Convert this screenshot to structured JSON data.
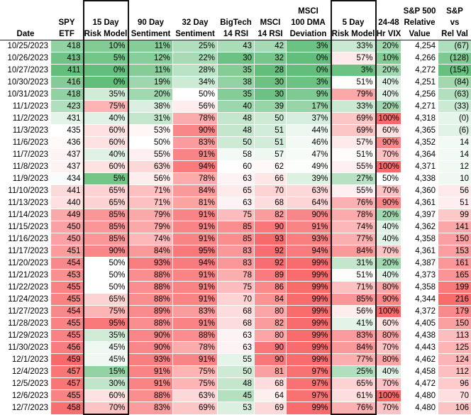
{
  "headers": {
    "date": [
      "Date"
    ],
    "spy": [
      "SPY",
      "ETF"
    ],
    "risk15": [
      "15 Day",
      "Risk Model"
    ],
    "sent90": [
      "90 Day",
      "Sentiment"
    ],
    "sent32": [
      "32 Day",
      "Sentiment"
    ],
    "bigtech": [
      "BigTech",
      "14 RSI"
    ],
    "msci_rsi": [
      "MSCI",
      "14 RSI"
    ],
    "dma": [
      "MSCI",
      "100 DMA",
      "Deviation"
    ],
    "risk5": [
      "5 Day",
      "Risk Model"
    ],
    "vix": [
      "24-48",
      "Hr VIX"
    ],
    "sp500": [
      "S&P 500",
      "Relative",
      "Value"
    ],
    "relval": [
      "S&P",
      "vs",
      "Rel Val"
    ]
  },
  "rows": [
    {
      "date": "10/25/2023",
      "spy": "418",
      "risk15": "10%",
      "sent90": "11%",
      "sent32": "25%",
      "bigtech": "43",
      "msci_rsi": "42",
      "dma": "3%",
      "risk5": "33%",
      "vix": "20%",
      "sp500": "4,254",
      "relval": "(67)"
    },
    {
      "date": "10/26/2023",
      "spy": "413",
      "risk15": "5%",
      "sent90": "12%",
      "sent32": "22%",
      "bigtech": "30",
      "msci_rsi": "32",
      "dma": "0%",
      "risk5": "57%",
      "vix": "10%",
      "sp500": "4,266",
      "relval": "(128)"
    },
    {
      "date": "10/27/2023",
      "spy": "411",
      "risk15": "0%",
      "sent90": "11%",
      "sent32": "28%",
      "bigtech": "35",
      "msci_rsi": "28",
      "dma": "0%",
      "risk5": "3%",
      "vix": "20%",
      "sp500": "4,272",
      "relval": "(154)"
    },
    {
      "date": "10/30/2023",
      "spy": "416",
      "risk15": "0%",
      "sent90": "19%",
      "sent32": "34%",
      "bigtech": "38",
      "msci_rsi": "30",
      "dma": "3%",
      "risk5": "51%",
      "vix": "40%",
      "sp500": "4,251",
      "relval": "(84)"
    },
    {
      "date": "10/31/2023",
      "spy": "418",
      "risk15": "35%",
      "sent90": "20%",
      "sent32": "50%",
      "bigtech": "35",
      "msci_rsi": "30",
      "dma": "9%",
      "risk5": "79%",
      "vix": "40%",
      "sp500": "4,256",
      "relval": "(63)"
    },
    {
      "date": "11/1/2023",
      "spy": "423",
      "risk15": "75%",
      "sent90": "38%",
      "sent32": "56%",
      "bigtech": "40",
      "msci_rsi": "39",
      "dma": "17%",
      "risk5": "33%",
      "vix": "20%",
      "sp500": "4,271",
      "relval": "(33)"
    },
    {
      "date": "11/2/2023",
      "spy": "431",
      "risk15": "40%",
      "sent90": "31%",
      "sent32": "78%",
      "bigtech": "48",
      "msci_rsi": "50",
      "dma": "37%",
      "risk5": "69%",
      "vix": "100%",
      "sp500": "4,318",
      "relval": "(0)"
    },
    {
      "date": "11/3/2023",
      "spy": "435",
      "risk15": "60%",
      "sent90": "53%",
      "sent32": "90%",
      "bigtech": "48",
      "msci_rsi": "51",
      "dma": "44%",
      "risk5": "69%",
      "vix": "60%",
      "sp500": "4,365",
      "relval": "(6)"
    },
    {
      "date": "11/6/2023",
      "spy": "436",
      "risk15": "60%",
      "sent90": "50%",
      "sent32": "83%",
      "bigtech": "50",
      "msci_rsi": "51",
      "dma": "46%",
      "risk5": "57%",
      "vix": "90%",
      "sp500": "4,352",
      "relval": "14"
    },
    {
      "date": "11/7/2023",
      "spy": "437",
      "risk15": "40%",
      "sent90": "55%",
      "sent32": "91%",
      "bigtech": "58",
      "msci_rsi": "57",
      "dma": "47%",
      "risk5": "51%",
      "vix": "70%",
      "sp500": "4,364",
      "relval": "14"
    },
    {
      "date": "11/8/2023",
      "spy": "437",
      "risk15": "60%",
      "sent90": "63%",
      "sent32": "94%",
      "bigtech": "60",
      "msci_rsi": "62",
      "dma": "49%",
      "risk5": "55%",
      "vix": "100%",
      "sp500": "4,371",
      "relval": "12"
    },
    {
      "date": "11/9/2023",
      "spy": "434",
      "risk15": "5%",
      "sent90": "56%",
      "sent32": "78%",
      "bigtech": "63",
      "msci_rsi": "66",
      "dma": "39%",
      "risk5": "27%",
      "vix": "50%",
      "sp500": "4,338",
      "relval": "10"
    },
    {
      "date": "11/10/2023",
      "spy": "441",
      "risk15": "65%",
      "sent90": "71%",
      "sent32": "84%",
      "bigtech": "65",
      "msci_rsi": "70",
      "dma": "63%",
      "risk5": "55%",
      "vix": "70%",
      "sp500": "4,360",
      "relval": "56"
    },
    {
      "date": "11/13/2023",
      "spy": "440",
      "risk15": "65%",
      "sent90": "71%",
      "sent32": "81%",
      "bigtech": "63",
      "msci_rsi": "68",
      "dma": "64%",
      "risk5": "76%",
      "vix": "90%",
      "sp500": "4,361",
      "relval": "51"
    },
    {
      "date": "11/14/2023",
      "spy": "449",
      "risk15": "85%",
      "sent90": "79%",
      "sent32": "91%",
      "bigtech": "75",
      "msci_rsi": "82",
      "dma": "90%",
      "risk5": "78%",
      "vix": "20%",
      "sp500": "4,397",
      "relval": "99"
    },
    {
      "date": "11/15/2023",
      "spy": "450",
      "risk15": "85%",
      "sent90": "79%",
      "sent32": "91%",
      "bigtech": "85",
      "msci_rsi": "90",
      "dma": "91%",
      "risk5": "74%",
      "vix": "40%",
      "sp500": "4,362",
      "relval": "141"
    },
    {
      "date": "11/16/2023",
      "spy": "450",
      "risk15": "85%",
      "sent90": "74%",
      "sent32": "91%",
      "bigtech": "85",
      "msci_rsi": "93",
      "dma": "93%",
      "risk5": "77%",
      "vix": "40%",
      "sp500": "4,358",
      "relval": "150"
    },
    {
      "date": "11/17/2023",
      "spy": "451",
      "risk15": "90%",
      "sent90": "84%",
      "sent32": "95%",
      "bigtech": "83",
      "msci_rsi": "92",
      "dma": "94%",
      "risk5": "84%",
      "vix": "70%",
      "sp500": "4,361",
      "relval": "153"
    },
    {
      "date": "11/20/2023",
      "spy": "454",
      "risk15": "50%",
      "sent90": "93%",
      "sent32": "94%",
      "bigtech": "83",
      "msci_rsi": "92",
      "dma": "99%",
      "risk5": "31%",
      "vix": "20%",
      "sp500": "4,387",
      "relval": "161"
    },
    {
      "date": "11/21/2023",
      "spy": "453",
      "risk15": "50%",
      "sent90": "88%",
      "sent32": "91%",
      "bigtech": "78",
      "msci_rsi": "89",
      "dma": "99%",
      "risk5": "51%",
      "vix": "40%",
      "sp500": "4,373",
      "relval": "165"
    },
    {
      "date": "11/22/2023",
      "spy": "455",
      "risk15": "50%",
      "sent90": "88%",
      "sent32": "91%",
      "bigtech": "75",
      "msci_rsi": "86",
      "dma": "99%",
      "risk5": "71%",
      "vix": "80%",
      "sp500": "4,358",
      "relval": "199"
    },
    {
      "date": "11/24/2023",
      "spy": "455",
      "risk15": "65%",
      "sent90": "88%",
      "sent32": "91%",
      "bigtech": "70",
      "msci_rsi": "84",
      "dma": "99%",
      "risk5": "85%",
      "vix": "90%",
      "sp500": "4,344",
      "relval": "216"
    },
    {
      "date": "11/27/2023",
      "spy": "454",
      "risk15": "75%",
      "sent90": "89%",
      "sent32": "83%",
      "bigtech": "68",
      "msci_rsi": "80",
      "dma": "99%",
      "risk5": "56%",
      "vix": "100%",
      "sp500": "4,372",
      "relval": "179"
    },
    {
      "date": "11/28/2023",
      "spy": "455",
      "risk15": "95%",
      "sent90": "88%",
      "sent32": "91%",
      "bigtech": "68",
      "msci_rsi": "82",
      "dma": "99%",
      "risk5": "41%",
      "vix": "60%",
      "sp500": "4,405",
      "relval": "150"
    },
    {
      "date": "11/29/2023",
      "spy": "455",
      "risk15": "35%",
      "sent90": "90%",
      "sent32": "88%",
      "bigtech": "63",
      "msci_rsi": "80",
      "dma": "99%",
      "risk5": "83%",
      "vix": "80%",
      "sp500": "4,438",
      "relval": "113"
    },
    {
      "date": "11/30/2023",
      "spy": "456",
      "risk15": "45%",
      "sent90": "90%",
      "sent32": "78%",
      "bigtech": "63",
      "msci_rsi": "90",
      "dma": "99%",
      "risk5": "84%",
      "vix": "70%",
      "sp500": "4,443",
      "relval": "125"
    },
    {
      "date": "12/1/2023",
      "spy": "459",
      "risk15": "45%",
      "sent90": "93%",
      "sent32": "91%",
      "bigtech": "55",
      "msci_rsi": "90",
      "dma": "99%",
      "risk5": "77%",
      "vix": "80%",
      "sp500": "4,462",
      "relval": "124"
    },
    {
      "date": "12/4/2023",
      "spy": "457",
      "risk15": "15%",
      "sent90": "91%",
      "sent32": "75%",
      "bigtech": "50",
      "msci_rsi": "81",
      "dma": "97%",
      "risk5": "25%",
      "vix": "40%",
      "sp500": "4,458",
      "relval": "112"
    },
    {
      "date": "12/5/2023",
      "spy": "457",
      "risk15": "30%",
      "sent90": "91%",
      "sent32": "75%",
      "bigtech": "48",
      "msci_rsi": "68",
      "dma": "97%",
      "risk5": "65%",
      "vix": "70%",
      "sp500": "4,472",
      "relval": "96"
    },
    {
      "date": "12/6/2023",
      "spy": "455",
      "risk15": "60%",
      "sent90": "88%",
      "sent32": "63%",
      "bigtech": "45",
      "msci_rsi": "64",
      "dma": "97%",
      "risk5": "61%",
      "vix": "100%",
      "sp500": "4,480",
      "relval": "70"
    },
    {
      "date": "12/7/2023",
      "spy": "458",
      "risk15": "70%",
      "sent90": "83%",
      "sent32": "69%",
      "bigtech": "53",
      "msci_rsi": "69",
      "dma": "99%",
      "risk5": "76%",
      "vix": "70%",
      "sp500": "4,480",
      "relval": "106"
    }
  ],
  "colors": {
    "green": "#63be7b",
    "white": "#ffffff",
    "red": "#f8696b",
    "scale_note": "green-to-red conditional formatting"
  }
}
